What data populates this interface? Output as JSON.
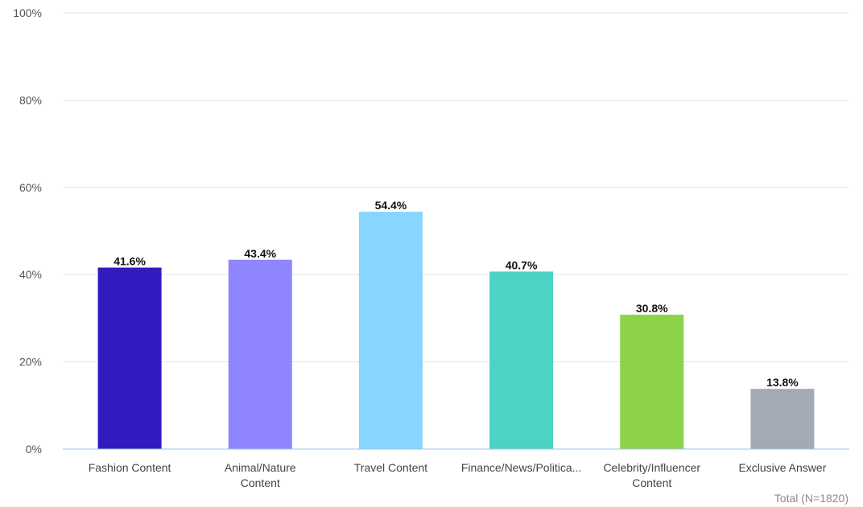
{
  "chart_data": {
    "type": "bar",
    "categories": [
      [
        "Fashion Content"
      ],
      [
        "Animal/Nature",
        "Content"
      ],
      [
        "Travel Content"
      ],
      [
        "Finance/News/Politica..."
      ],
      [
        "Celebrity/Influencer",
        "Content"
      ],
      [
        "Exclusive Answer"
      ]
    ],
    "values": [
      41.6,
      43.4,
      54.4,
      40.7,
      30.8,
      13.8
    ],
    "data_labels": [
      "41.6%",
      "43.4%",
      "54.4%",
      "40.7%",
      "30.8%",
      "13.8%"
    ],
    "colors": [
      "#2f1bbf",
      "#8f85ff",
      "#86d6ff",
      "#4dd3c4",
      "#8dd34a",
      "#a3aab4"
    ],
    "ylim": [
      0,
      100
    ],
    "yticks": [
      "0%",
      "20%",
      "40%",
      "60%",
      "80%",
      "100%"
    ],
    "grid": true,
    "legend": "none"
  },
  "footnote": "Total (N=1820)"
}
